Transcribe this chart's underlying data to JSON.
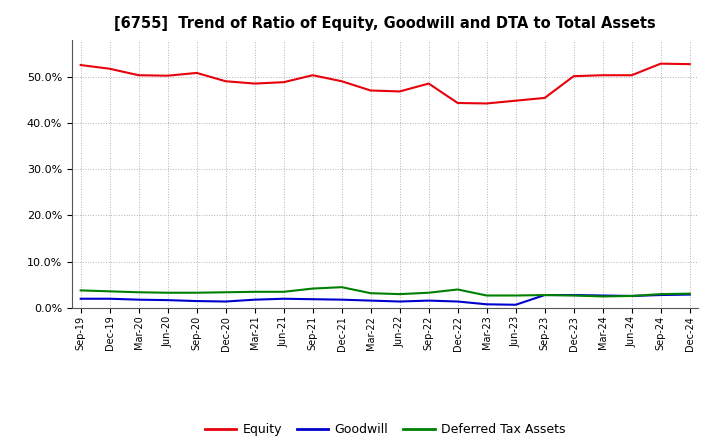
{
  "title": "[6755]  Trend of Ratio of Equity, Goodwill and DTA to Total Assets",
  "x_labels": [
    "Sep-19",
    "Dec-19",
    "Mar-20",
    "Jun-20",
    "Sep-20",
    "Dec-20",
    "Mar-21",
    "Jun-21",
    "Sep-21",
    "Dec-21",
    "Mar-22",
    "Jun-22",
    "Sep-22",
    "Dec-22",
    "Mar-23",
    "Jun-23",
    "Sep-23",
    "Dec-23",
    "Mar-24",
    "Jun-24",
    "Sep-24",
    "Dec-24"
  ],
  "equity": [
    52.5,
    51.7,
    50.3,
    50.2,
    50.8,
    49.0,
    48.5,
    48.8,
    50.3,
    49.0,
    47.0,
    46.8,
    48.5,
    44.3,
    44.2,
    44.8,
    45.4,
    50.1,
    50.3,
    50.3,
    52.8,
    52.7
  ],
  "goodwill": [
    2.0,
    2.0,
    1.8,
    1.7,
    1.5,
    1.4,
    1.8,
    2.0,
    1.9,
    1.8,
    1.6,
    1.4,
    1.6,
    1.4,
    0.8,
    0.7,
    2.8,
    2.8,
    2.7,
    2.6,
    2.8,
    2.9
  ],
  "dta": [
    3.8,
    3.6,
    3.4,
    3.3,
    3.3,
    3.4,
    3.5,
    3.5,
    4.2,
    4.5,
    3.2,
    3.0,
    3.3,
    4.0,
    2.7,
    2.7,
    2.8,
    2.7,
    2.5,
    2.6,
    3.0,
    3.1
  ],
  "equity_color": "#e8000d",
  "goodwill_color": "#0000cc",
  "dta_color": "#008000",
  "bg_color": "#ffffff",
  "plot_bg_color": "#ffffff",
  "ylim": [
    0,
    58
  ],
  "yticks": [
    0,
    10,
    20,
    30,
    40,
    50
  ],
  "grid_color": "#aaaaaa",
  "legend_labels": [
    "Equity",
    "Goodwill",
    "Deferred Tax Assets"
  ]
}
